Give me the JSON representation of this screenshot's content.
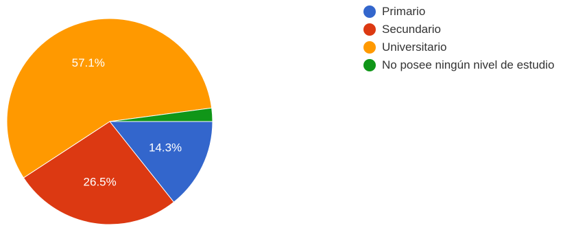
{
  "chart_data": {
    "type": "pie",
    "title": "",
    "slices": [
      {
        "label": "Primario",
        "value": 14.3,
        "display": "14.3%",
        "color": "#3366cc"
      },
      {
        "label": "Secundario",
        "value": 26.5,
        "display": "26.5%",
        "color": "#dc3912"
      },
      {
        "label": "Universitario",
        "value": 57.1,
        "display": "57.1%",
        "color": "#ff9900"
      },
      {
        "label": "No posee ningún nivel de estudio",
        "value": 2.1,
        "display": "",
        "color": "#109618"
      }
    ],
    "legend_position": "right"
  }
}
